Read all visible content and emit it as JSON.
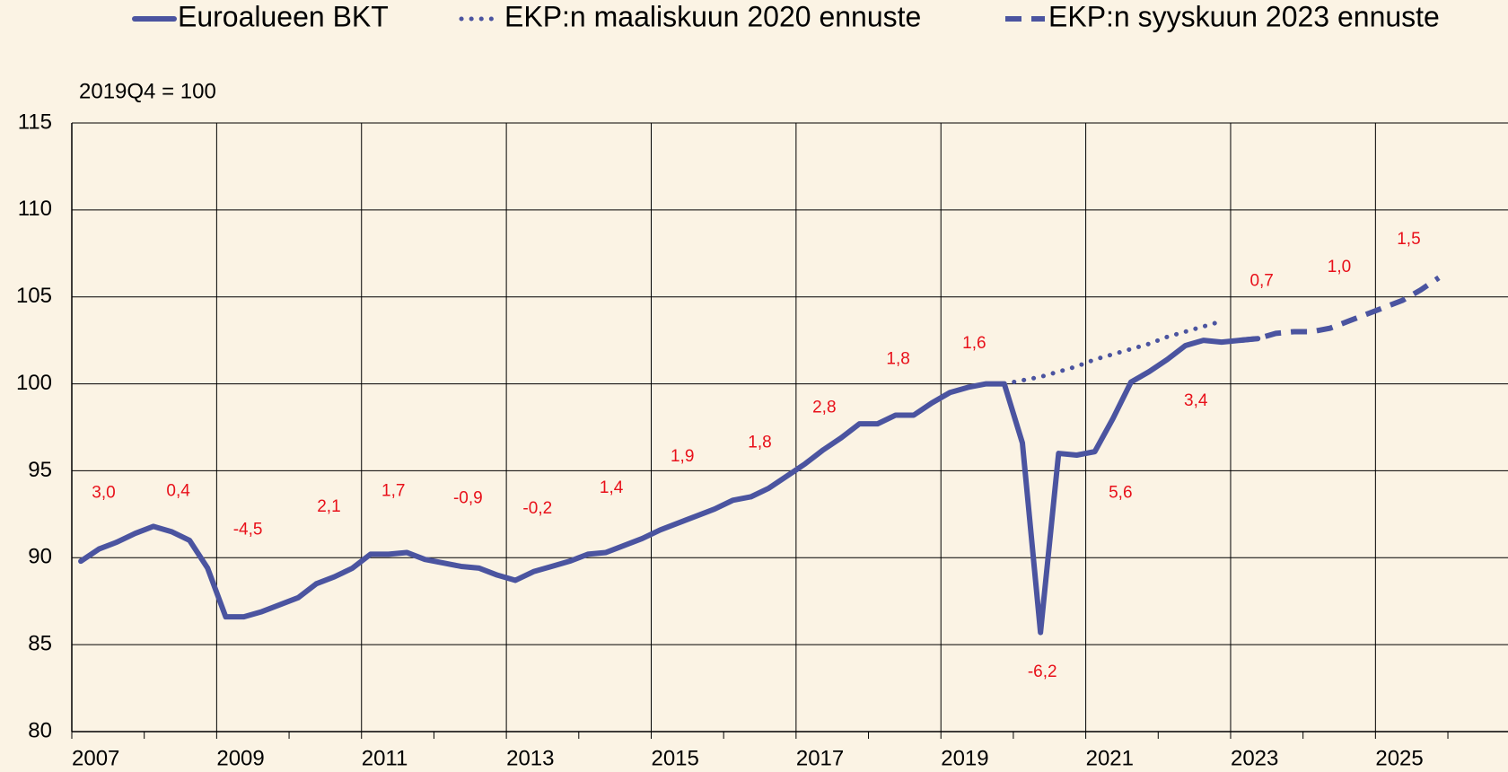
{
  "chart_data": {
    "type": "line",
    "ylabel": "2019Q4 = 100",
    "xlim": [
      2007,
      2026.83
    ],
    "ylim": [
      80,
      115
    ],
    "xticks": [
      2007,
      2009,
      2011,
      2013,
      2015,
      2017,
      2019,
      2021,
      2023,
      2025
    ],
    "xminorticks": [
      2008,
      2010,
      2012,
      2014,
      2016,
      2018,
      2020,
      2022,
      2024,
      2026
    ],
    "yticks": [
      80,
      85,
      90,
      95,
      100,
      105,
      110,
      115
    ],
    "grid": true,
    "legend": "top",
    "series": [
      {
        "name": "Euroalueen BKT",
        "color": "#4b54a0",
        "style": "solid",
        "x": [
          2007.125,
          2007.375,
          2007.625,
          2007.875,
          2008.125,
          2008.375,
          2008.625,
          2008.875,
          2009.125,
          2009.375,
          2009.625,
          2009.875,
          2010.125,
          2010.375,
          2010.625,
          2010.875,
          2011.125,
          2011.375,
          2011.625,
          2011.875,
          2012.125,
          2012.375,
          2012.625,
          2012.875,
          2013.125,
          2013.375,
          2013.625,
          2013.875,
          2014.125,
          2014.375,
          2014.625,
          2014.875,
          2015.125,
          2015.375,
          2015.625,
          2015.875,
          2016.125,
          2016.375,
          2016.625,
          2016.875,
          2017.125,
          2017.375,
          2017.625,
          2017.875,
          2018.125,
          2018.375,
          2018.625,
          2018.875,
          2019.125,
          2019.375,
          2019.625,
          2019.875,
          2020.125,
          2020.375,
          2020.625,
          2020.875,
          2021.125,
          2021.375,
          2021.625,
          2021.875,
          2022.125,
          2022.375,
          2022.625,
          2022.875,
          2023.125,
          2023.375
        ],
        "values": [
          89.8,
          90.5,
          90.9,
          91.4,
          91.8,
          91.5,
          91.0,
          89.4,
          86.6,
          86.6,
          86.9,
          87.3,
          87.7,
          88.5,
          88.9,
          89.4,
          90.2,
          90.2,
          90.3,
          89.9,
          89.7,
          89.5,
          89.4,
          89.0,
          88.7,
          89.2,
          89.5,
          89.8,
          90.2,
          90.3,
          90.7,
          91.1,
          91.6,
          92.0,
          92.4,
          92.8,
          93.3,
          93.5,
          94.0,
          94.7,
          95.4,
          96.2,
          96.9,
          97.7,
          97.7,
          98.2,
          98.2,
          98.9,
          99.5,
          99.8,
          100.0,
          100.0,
          96.6,
          85.7,
          96.0,
          95.9,
          96.1,
          98.0,
          100.1,
          100.7,
          101.4,
          102.2,
          102.5,
          102.4,
          102.5,
          102.6
        ]
      },
      {
        "name": "EKP:n maaliskuun 2020 ennuste",
        "color": "#4b54a0",
        "style": "dotted",
        "x": [
          2019.875,
          2020.125,
          2020.375,
          2020.625,
          2020.875,
          2021.125,
          2021.375,
          2021.625,
          2021.875,
          2022.125,
          2022.375,
          2022.625,
          2022.875
        ],
        "values": [
          100.0,
          100.2,
          100.4,
          100.7,
          101.0,
          101.4,
          101.7,
          102.0,
          102.3,
          102.7,
          103.0,
          103.3,
          103.6
        ]
      },
      {
        "name": "EKP:n syyskuun 2023 ennuste",
        "color": "#4b54a0",
        "style": "dashed",
        "x": [
          2023.125,
          2023.375,
          2023.625,
          2023.875,
          2024.125,
          2024.375,
          2024.625,
          2024.875,
          2025.125,
          2025.375,
          2025.625,
          2025.875
        ],
        "values": [
          102.5,
          102.6,
          102.9,
          103.0,
          103.0,
          103.2,
          103.6,
          104.0,
          104.4,
          104.8,
          105.4,
          106.1
        ]
      }
    ],
    "annotations": [
      {
        "text": "3,0",
        "x": 2007.44,
        "y": 93.7
      },
      {
        "text": "0,4",
        "x": 2008.47,
        "y": 93.8
      },
      {
        "text": "-4,5",
        "x": 2009.43,
        "y": 91.6
      },
      {
        "text": "2,1",
        "x": 2010.55,
        "y": 92.9
      },
      {
        "text": "1,7",
        "x": 2011.44,
        "y": 93.8
      },
      {
        "text": "-0,9",
        "x": 2012.47,
        "y": 93.4
      },
      {
        "text": "-0,2",
        "x": 2013.43,
        "y": 92.8
      },
      {
        "text": "1,4",
        "x": 2014.45,
        "y": 94.0
      },
      {
        "text": "1,9",
        "x": 2015.43,
        "y": 95.8
      },
      {
        "text": "1,8",
        "x": 2016.5,
        "y": 96.6
      },
      {
        "text": "2,8",
        "x": 2017.39,
        "y": 98.6
      },
      {
        "text": "1,8",
        "x": 2018.41,
        "y": 101.4
      },
      {
        "text": "1,6",
        "x": 2019.46,
        "y": 102.3
      },
      {
        "text": "-6,2",
        "x": 2020.4,
        "y": 83.4
      },
      {
        "text": "5,6",
        "x": 2021.48,
        "y": 93.7
      },
      {
        "text": "3,4",
        "x": 2022.52,
        "y": 99.0
      },
      {
        "text": "0,7",
        "x": 2023.43,
        "y": 105.9
      },
      {
        "text": "1,0",
        "x": 2024.5,
        "y": 106.7
      },
      {
        "text": "1,5",
        "x": 2025.46,
        "y": 108.3
      }
    ],
    "annotation_color": "#e8101a"
  }
}
